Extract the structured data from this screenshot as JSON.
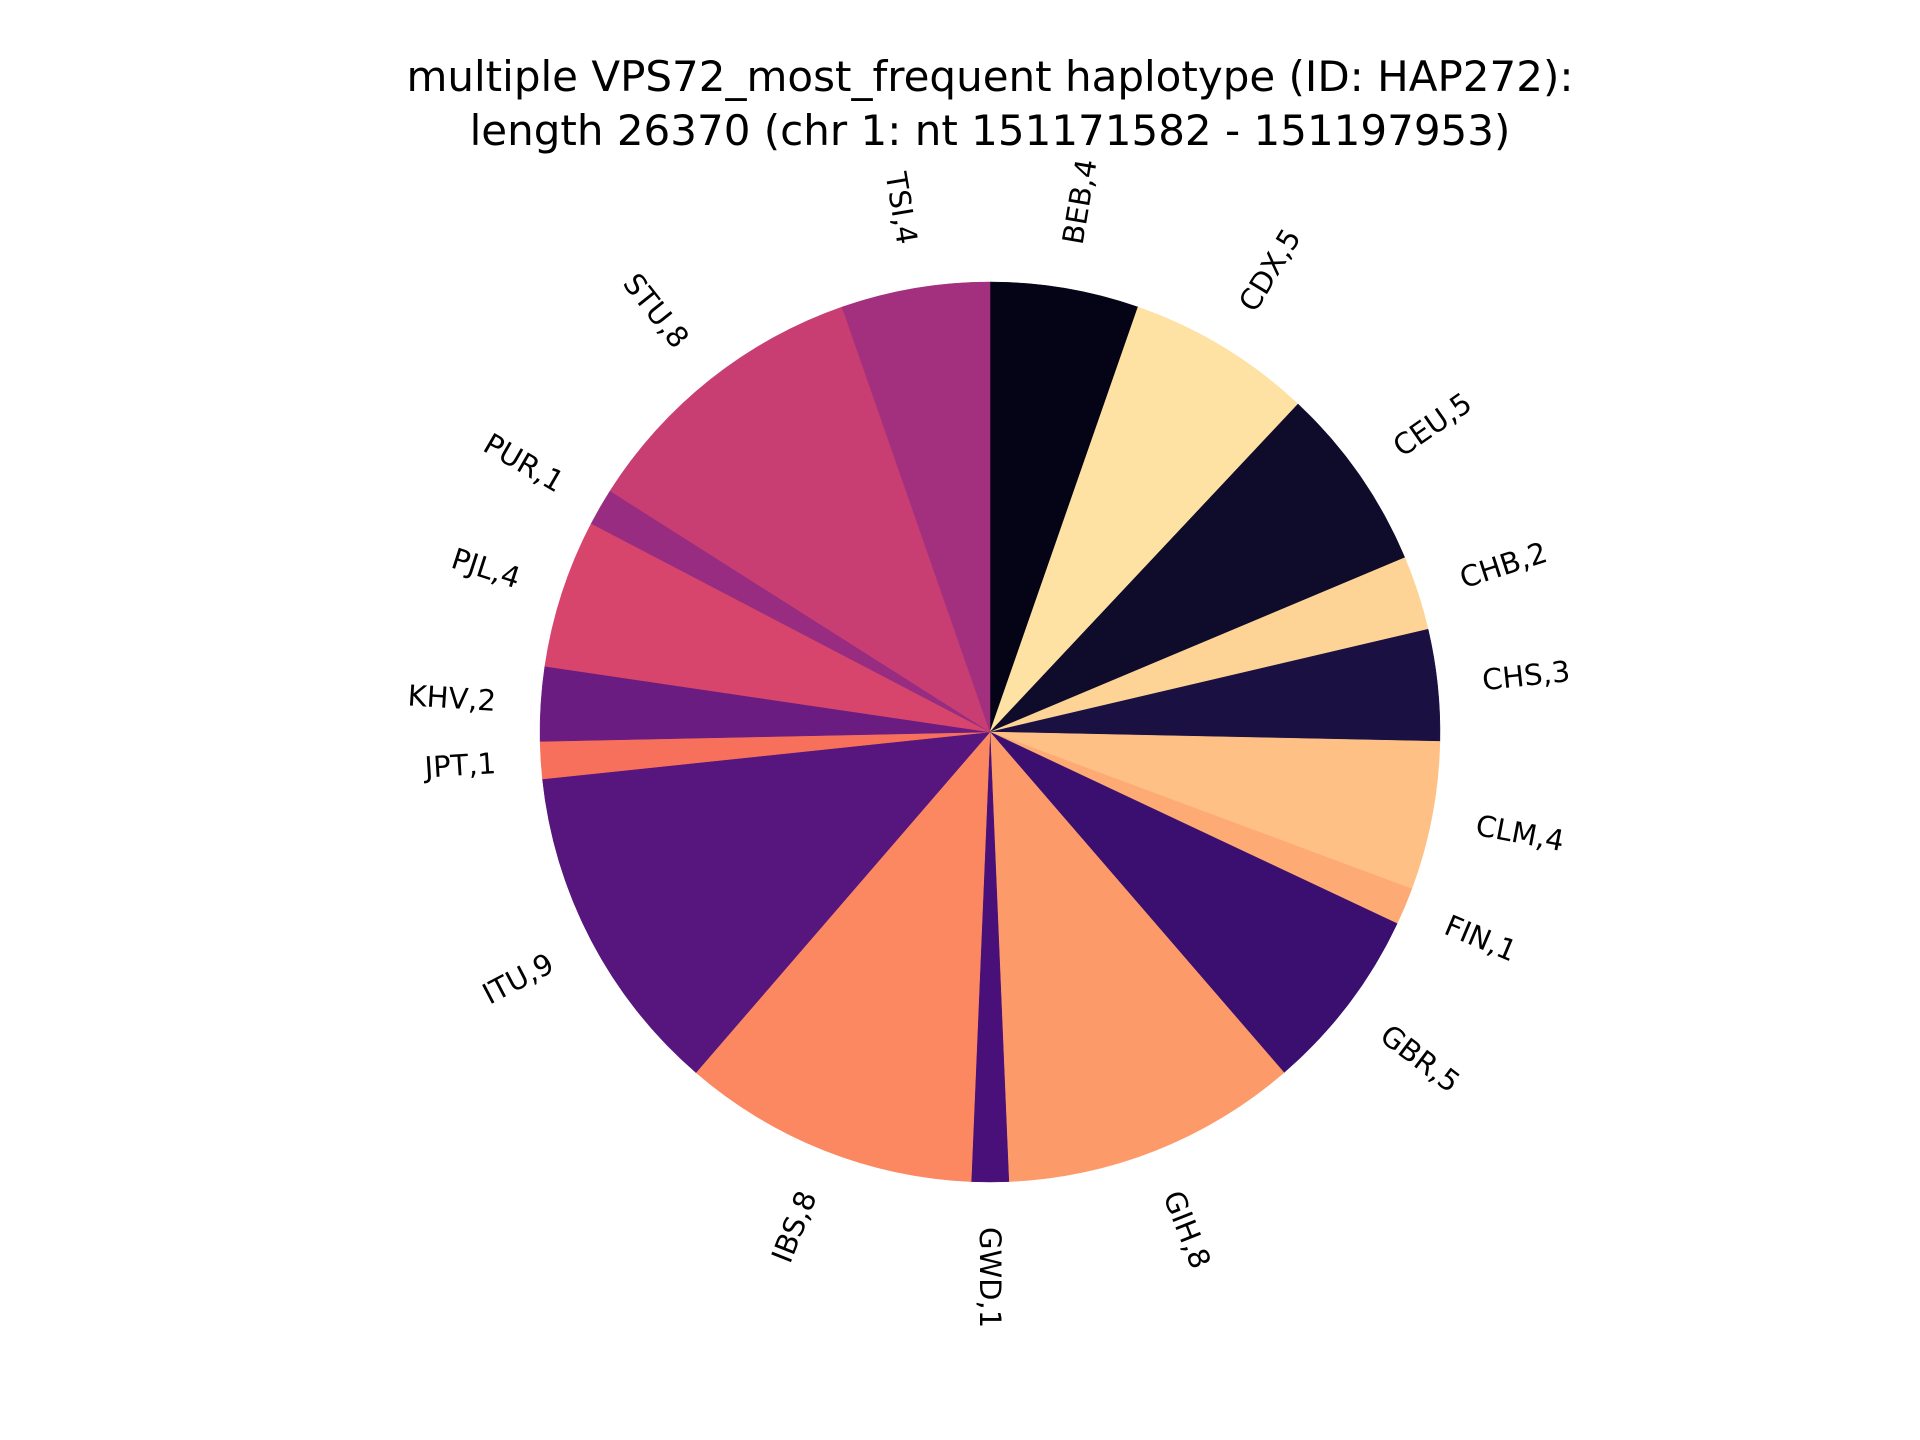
{
  "chart_data": {
    "type": "pie",
    "title": "multiple VPS72_most_frequent haplotype (ID: HAP272):",
    "subtitle": "length 26370 (chr 1: nt 151171582 - 151197953)",
    "start_angle_deg": 90,
    "direction": "clockwise",
    "slices": [
      {
        "label": "BEB,4",
        "value": 4,
        "color": "#050416"
      },
      {
        "label": "CDX,5",
        "value": 5,
        "color": "#fde2a3"
      },
      {
        "label": "CEU,5",
        "value": 5,
        "color": "#0e0b2b"
      },
      {
        "label": "CHB,2",
        "value": 2,
        "color": "#fdd495"
      },
      {
        "label": "CHS,3",
        "value": 3,
        "color": "#1b1042"
      },
      {
        "label": "CLM,4",
        "value": 4,
        "color": "#fec085"
      },
      {
        "label": "FIN,1",
        "value": 1,
        "color": "#feaa74"
      },
      {
        "label": "GBR,5",
        "value": 5,
        "color": "#3b0f70"
      },
      {
        "label": "GIH,8",
        "value": 8,
        "color": "#fd9a6a"
      },
      {
        "label": "GWD,1",
        "value": 1,
        "color": "#4a1079"
      },
      {
        "label": "IBS,8",
        "value": 8,
        "color": "#fb8861"
      },
      {
        "label": "ITU,9",
        "value": 9,
        "color": "#57157e"
      },
      {
        "label": "JPT,1",
        "value": 1,
        "color": "#f7705c"
      },
      {
        "label": "KHV,2",
        "value": 2,
        "color": "#6a1c81"
      },
      {
        "label": "PJL,4",
        "value": 4,
        "color": "#d8456c"
      },
      {
        "label": "PUR,1",
        "value": 1,
        "color": "#972c80"
      },
      {
        "label": "STU,8",
        "value": 8,
        "color": "#c83e73"
      },
      {
        "label": "TSI,4",
        "value": 4,
        "color": "#a3307e"
      }
    ]
  }
}
